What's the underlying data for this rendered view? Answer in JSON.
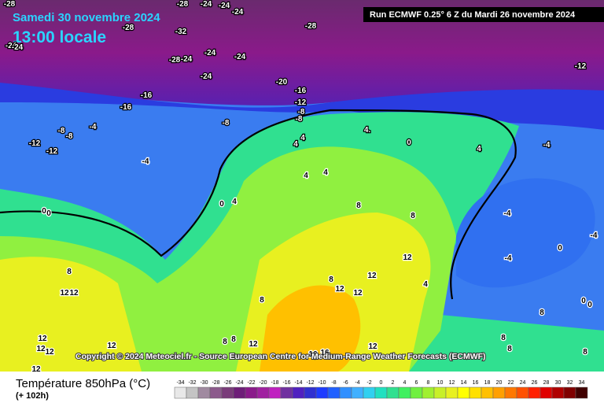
{
  "header": {
    "date": "Samedi 30 novembre 2024",
    "time": "13:00 locale",
    "run": "Run ECMWF 0.25° 6 Z du Mardi 26 novembre 2024"
  },
  "copyright": "Copyright © 2024 Meteociel.fr - Source European Centre for Medium-Range Weather Forecasts (ECMWF)",
  "legend": {
    "title": "Température 850hPa (°C)",
    "lead": "(+ 102h)",
    "ticks": [
      -34,
      -32,
      -30,
      -28,
      -26,
      -24,
      -22,
      -20,
      -18,
      -16,
      -14,
      -12,
      -10,
      -8,
      -6,
      -4,
      -2,
      0,
      2,
      4,
      6,
      8,
      10,
      12,
      14,
      16,
      18,
      20,
      22,
      24,
      26,
      28,
      30,
      32,
      34
    ],
    "colors": [
      "#e8e8e8",
      "#c4c4c4",
      "#a08aa0",
      "#8c5a8c",
      "#7a3c7a",
      "#6e1e78",
      "#8a1a8a",
      "#a020a0",
      "#c020c0",
      "#7030a0",
      "#5020c0",
      "#3030d0",
      "#1e3cff",
      "#2060ff",
      "#3090ff",
      "#40b0ff",
      "#30d0f0",
      "#20e0c0",
      "#30e090",
      "#40f060",
      "#70f040",
      "#a0f030",
      "#c8f028",
      "#e8f020",
      "#ffff00",
      "#ffe000",
      "#ffc000",
      "#ffa000",
      "#ff7800",
      "#ff5000",
      "#ff2000",
      "#e00000",
      "#b00000",
      "#800000",
      "#400000"
    ]
  },
  "contour_labels": [
    "-28",
    "-28",
    "-24",
    "-24",
    "-24",
    "-28",
    "-32",
    "-28",
    "-24",
    "-24",
    "-24",
    "-28",
    "-24",
    "-24",
    "-24",
    "-20",
    "-12",
    "-16",
    "-16",
    "-16",
    "-12",
    "-8",
    "-8",
    "-8",
    "-4",
    "-8",
    "-8",
    "-12",
    "-12",
    "-4",
    "4.",
    "4",
    "4",
    "4",
    "4",
    "0",
    "4",
    "-4",
    "4",
    "0",
    "0",
    "0",
    "8",
    "8",
    "-4",
    "-4",
    "0",
    "-4",
    "12",
    "8",
    "8",
    "12",
    "4",
    "12",
    "12",
    "12",
    "12",
    "8",
    "0",
    "0",
    "8",
    "12",
    "12",
    "12",
    "12",
    "8",
    "8",
    "12",
    "12",
    "16",
    "16",
    "8",
    "8",
    "12",
    "8"
  ]
}
